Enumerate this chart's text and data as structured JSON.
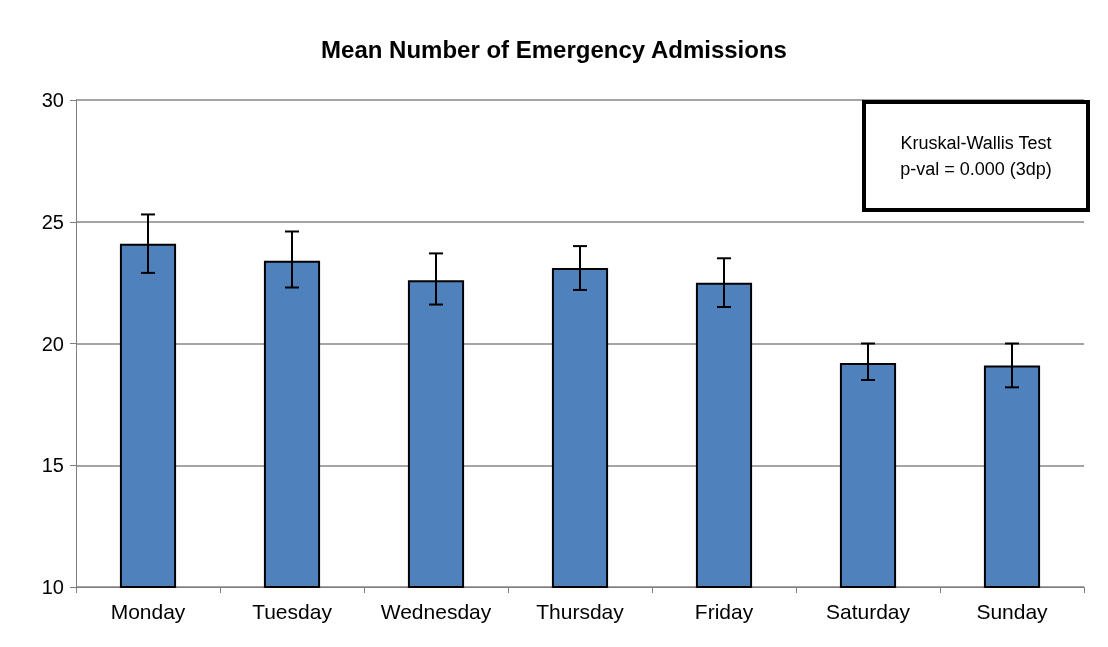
{
  "chart_data": {
    "type": "bar",
    "title": "Mean Number of Emergency Admissions",
    "categories": [
      "Monday",
      "Tuesday",
      "Wednesday",
      "Thursday",
      "Friday",
      "Saturday",
      "Sunday"
    ],
    "values": [
      24.1,
      23.4,
      22.6,
      23.1,
      22.5,
      19.2,
      19.1
    ],
    "errors": [
      [
        22.9,
        25.3
      ],
      [
        22.3,
        24.6
      ],
      [
        21.6,
        23.7
      ],
      [
        22.2,
        24.0
      ],
      [
        21.5,
        23.5
      ],
      [
        18.5,
        20.0
      ],
      [
        18.2,
        20.0
      ]
    ],
    "color": "#4f81bd",
    "ylim": [
      10,
      30
    ],
    "yticks": [
      10,
      15,
      20,
      25,
      30
    ],
    "grid": "y",
    "annotations": [
      "Kruskal-Wallis Test\np-val = 0.000 (3dp)"
    ]
  }
}
